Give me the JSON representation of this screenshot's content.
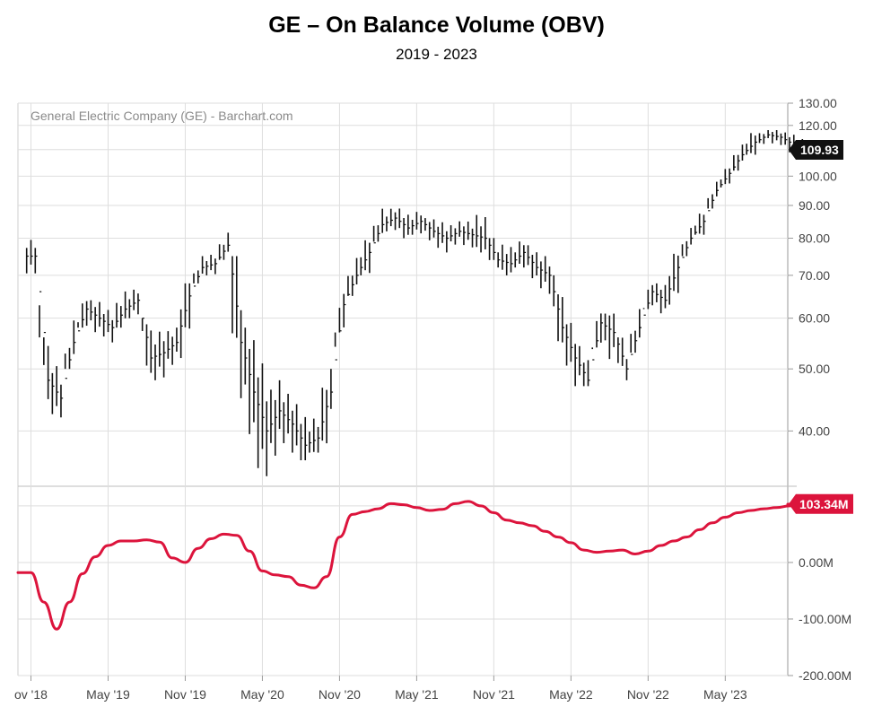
{
  "header": {
    "title": "GE – On Balance Volume (OBV)",
    "subtitle": "2019 - 2023",
    "source": "General Electric Company (GE) - Barchart.com"
  },
  "chart_data": [
    {
      "type": "bar",
      "panel": "price",
      "style": "ohlc-bars",
      "scale": "log",
      "ylim": [
        33,
        130
      ],
      "yticks": [
        40,
        50,
        60,
        70,
        80,
        90,
        100,
        110,
        120,
        130
      ],
      "ytick_labels": [
        "40.00",
        "50.00",
        "60.00",
        "70.00",
        "80.00",
        "90.00",
        "100.00",
        "110.00",
        "120.00",
        "130.00"
      ],
      "last_value_label": "109.93",
      "last_value": 109.93,
      "color": "#111111",
      "x": [
        "2018-11",
        "2018-12",
        "2019-01",
        "2019-02",
        "2019-03",
        "2019-04",
        "2019-05",
        "2019-06",
        "2019-07",
        "2019-08",
        "2019-09",
        "2019-10",
        "2019-11",
        "2019-12",
        "2020-01",
        "2020-02",
        "2020-03",
        "2020-04",
        "2020-05",
        "2020-06",
        "2020-07",
        "2020-08",
        "2020-09",
        "2020-10",
        "2020-11",
        "2020-12",
        "2021-01",
        "2021-02",
        "2021-03",
        "2021-04",
        "2021-05",
        "2021-06",
        "2021-07",
        "2021-08",
        "2021-09",
        "2021-10",
        "2021-11",
        "2021-12",
        "2022-01",
        "2022-02",
        "2022-03",
        "2022-04",
        "2022-05",
        "2022-06",
        "2022-07",
        "2022-08",
        "2022-09",
        "2022-10",
        "2022-11",
        "2022-12",
        "2023-01",
        "2023-02",
        "2023-03",
        "2023-04",
        "2023-05",
        "2023-06",
        "2023-07",
        "2023-08",
        "2023-09",
        "2023-10",
        "2023-11"
      ],
      "close": [
        75,
        48,
        45,
        55,
        62,
        60,
        58,
        62,
        64,
        52,
        53,
        55,
        65,
        72,
        73,
        78,
        55,
        46,
        40,
        43,
        41,
        38,
        39,
        46,
        63,
        70,
        76,
        84,
        86,
        83,
        85,
        82,
        80,
        82,
        81,
        80,
        74,
        73,
        76,
        72,
        70,
        58,
        52,
        48,
        59,
        57,
        50,
        58,
        66,
        64,
        72,
        80,
        85,
        95,
        101,
        108,
        113,
        116,
        115,
        112,
        110
      ],
      "high": [
        80,
        56,
        52,
        60,
        66,
        64,
        62,
        67,
        67,
        60,
        58,
        58,
        68,
        75,
        76,
        82,
        75,
        58,
        54,
        48,
        46,
        45,
        44,
        50,
        68,
        75,
        82,
        90,
        90,
        89,
        89,
        86,
        85,
        85,
        85,
        90,
        81,
        80,
        81,
        78,
        75,
        70,
        59,
        55,
        63,
        61,
        56,
        62,
        69,
        68,
        77,
        83,
        90,
        98,
        104,
        112,
        120,
        118,
        118,
        117,
        116
      ],
      "low": [
        70,
        42,
        42,
        50,
        58,
        56,
        55,
        58,
        60,
        48,
        48,
        50,
        52,
        68,
        70,
        74,
        45,
        37,
        34,
        36,
        37,
        36,
        37,
        38,
        57,
        65,
        70,
        79,
        82,
        80,
        81,
        78,
        76,
        78,
        77,
        76,
        72,
        70,
        72,
        69,
        65,
        55,
        47,
        47,
        54,
        48,
        48,
        53,
        62,
        60,
        63,
        75,
        81,
        89,
        96,
        102,
        108,
        112,
        111,
        108,
        108
      ]
    },
    {
      "type": "line",
      "panel": "obv",
      "ylim": [
        -200,
        130
      ],
      "yticks": [
        -200,
        -100,
        0
      ],
      "ytick_labels": [
        "-200.00M",
        "-100.00M",
        "0.00M"
      ],
      "last_value_label": "103.34M",
      "last_value": 103.34,
      "color": "#dc143c",
      "x": [
        "2018-11",
        "2018-12",
        "2019-01",
        "2019-02",
        "2019-03",
        "2019-04",
        "2019-05",
        "2019-06",
        "2019-07",
        "2019-08",
        "2019-09",
        "2019-10",
        "2019-11",
        "2019-12",
        "2020-01",
        "2020-02",
        "2020-03",
        "2020-04",
        "2020-05",
        "2020-06",
        "2020-07",
        "2020-08",
        "2020-09",
        "2020-10",
        "2020-11",
        "2020-12",
        "2021-01",
        "2021-02",
        "2021-03",
        "2021-04",
        "2021-05",
        "2021-06",
        "2021-07",
        "2021-08",
        "2021-09",
        "2021-10",
        "2021-11",
        "2021-12",
        "2022-01",
        "2022-02",
        "2022-03",
        "2022-04",
        "2022-05",
        "2022-06",
        "2022-07",
        "2022-08",
        "2022-09",
        "2022-10",
        "2022-11",
        "2022-12",
        "2023-01",
        "2023-02",
        "2023-03",
        "2023-04",
        "2023-05",
        "2023-06",
        "2023-07",
        "2023-08",
        "2023-09",
        "2023-10",
        "2023-11"
      ],
      "values": [
        -18,
        -70,
        -118,
        -70,
        -20,
        10,
        30,
        38,
        38,
        40,
        36,
        8,
        0,
        25,
        42,
        50,
        48,
        20,
        -15,
        -22,
        -25,
        -40,
        -45,
        -25,
        45,
        85,
        90,
        95,
        104,
        102,
        97,
        92,
        94,
        104,
        108,
        100,
        88,
        75,
        70,
        65,
        55,
        45,
        35,
        22,
        18,
        20,
        22,
        15,
        20,
        30,
        38,
        45,
        58,
        70,
        80,
        88,
        92,
        95,
        97,
        100,
        103
      ]
    }
  ],
  "xaxis": {
    "labels": [
      "ov '18",
      "May '19",
      "Nov '19",
      "May '20",
      "Nov '20",
      "May '21",
      "Nov '21",
      "May '22",
      "Nov '22",
      "May '23"
    ]
  }
}
